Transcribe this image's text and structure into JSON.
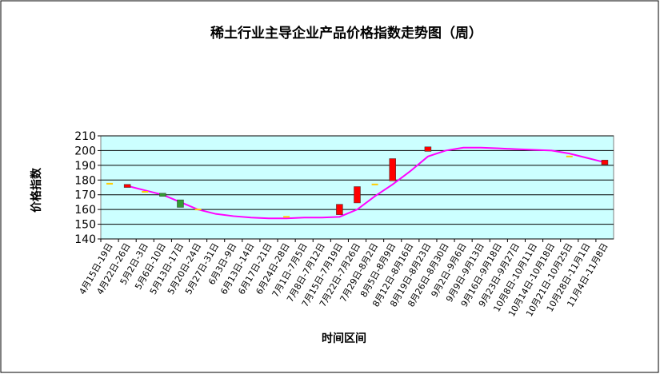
{
  "chart_data": {
    "type": "candlestick",
    "title": "稀土行业主导企业产品价格指数走势图（周）",
    "y_label": "价格指数",
    "x_label": "时间区间",
    "categories": [
      "4月15日-19日",
      "4月22日-26日",
      "5月2日-3日",
      "5月6日-10日",
      "5月13日-17日",
      "5月20日-24日",
      "5月27日-31日",
      "6月3日-9日",
      "6月13日-14日",
      "6月17日-21日",
      "6月24日-28日",
      "7月1日-7月5日",
      "7月8日-7月12日",
      "7月15日-7月19日",
      "7月22日-7月26日",
      "7月29日-8月2日",
      "8月5日-8月9日",
      "8月12日-8月16日",
      "8月19日-8月23日",
      "8月26日-8月30日",
      "9月2日-9月6日",
      "9月9日-9月13日",
      "9月16日-9月18日",
      "9月23日-9月27日",
      "10月8日-10月11日",
      "10月14日-10月18日",
      "10月21日-10月25日",
      "10月28日-11月1日",
      "11月4日-11月8日"
    ],
    "open": [
      177.5,
      175.5,
      172,
      170.5,
      166,
      160,
      null,
      null,
      null,
      null,
      155,
      null,
      null,
      157,
      165,
      177,
      180,
      null,
      200,
      null,
      null,
      null,
      null,
      null,
      null,
      null,
      196,
      null,
      191
    ],
    "close": [
      177.5,
      176.5,
      172,
      169.5,
      162,
      160,
      null,
      null,
      null,
      null,
      155,
      null,
      null,
      163,
      175,
      177,
      194,
      null,
      202,
      null,
      null,
      null,
      null,
      null,
      null,
      null,
      196,
      null,
      193
    ],
    "line_values": [
      null,
      176,
      173,
      170,
      165,
      160,
      157,
      155.5,
      154.5,
      154,
      154,
      154.5,
      154.5,
      155,
      160,
      169,
      177,
      186,
      196,
      200,
      202,
      202,
      201.5,
      201,
      200.5,
      200,
      198,
      195,
      192
    ],
    "line_color": "#ff00ff",
    "up_color": "#ff0000",
    "down_color": "#339933",
    "flat_color": "#ffcc00",
    "plot_color": "#ccffff",
    "ylim": [
      140,
      210
    ],
    "yticks": [
      140,
      150,
      160,
      170,
      180,
      190,
      200,
      210
    ],
    "grid": true
  }
}
